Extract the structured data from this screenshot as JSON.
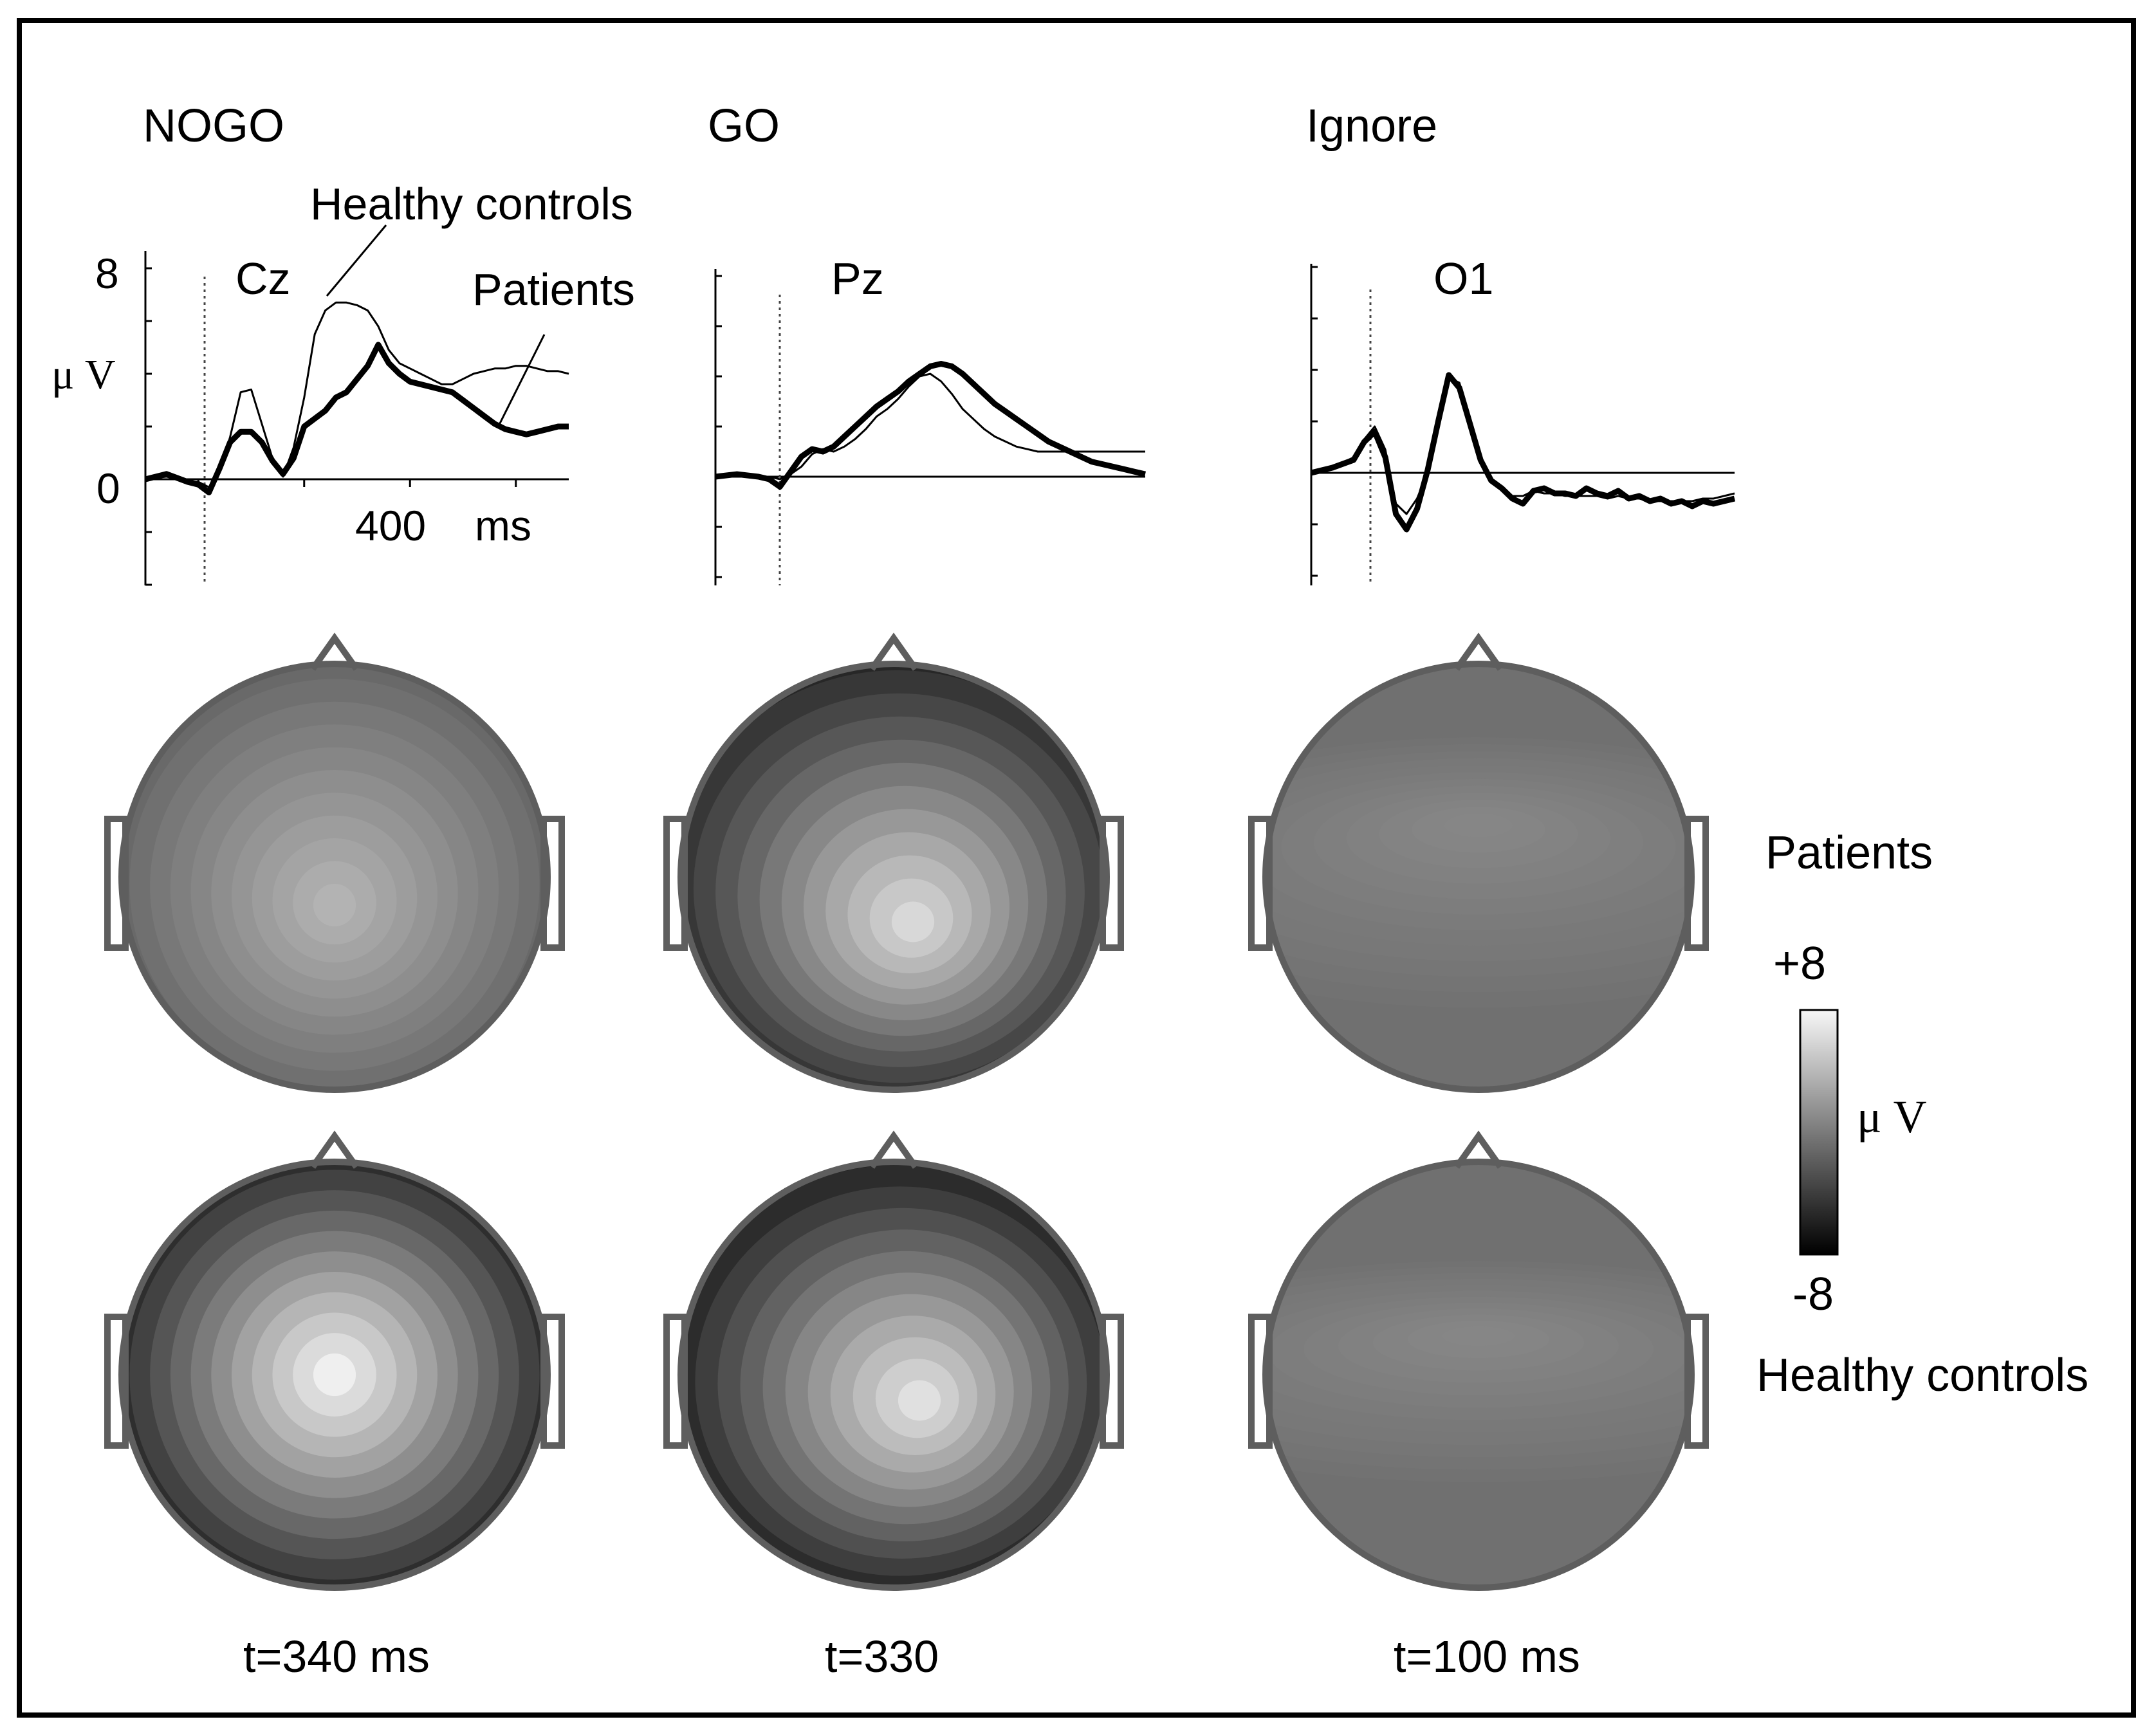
{
  "figure": {
    "conditions": [
      {
        "name": "NOGO",
        "electrode": "Cz",
        "time_label": "t=340 ms",
        "chart_data": {
          "type": "line",
          "electrode": "Cz",
          "xlabel": "ms",
          "ylabel": "µ V",
          "xlim": [
            -100,
            700
          ],
          "ylim": [
            -4,
            8
          ],
          "yticks": [
            0,
            8
          ],
          "xticks_labeled": [
            400
          ],
          "stimulus_onset_ms": 0,
          "annotations": [
            "Healthy controls",
            "Patients"
          ],
          "series": [
            {
              "name": "Healthy controls",
              "style": "thin",
              "x": [
                -100,
                -60,
                -20,
                0,
                20,
                40,
                60,
                80,
                100,
                120,
                140,
                160,
                180,
                200,
                220,
                240,
                260,
                280,
                300,
                320,
                340,
                360,
                380,
                400,
                420,
                440,
                460,
                480,
                500,
                520,
                540,
                560,
                580,
                600,
                620,
                640,
                660,
                680,
                700
              ],
              "y": [
                0,
                0.1,
                -0.1,
                -0.1,
                -0.3,
                0.3,
                1.6,
                3.3,
                3.4,
                2.1,
                0.8,
                0.1,
                1.2,
                3.1,
                5.5,
                6.4,
                6.7,
                6.7,
                6.6,
                6.4,
                5.8,
                4.9,
                4.4,
                4.2,
                4.0,
                3.8,
                3.6,
                3.6,
                3.8,
                4.0,
                4.1,
                4.2,
                4.2,
                4.3,
                4.3,
                4.2,
                4.1,
                4.1,
                4.0
              ]
            },
            {
              "name": "Patients",
              "style": "thick",
              "x": [
                -100,
                -60,
                -20,
                0,
                20,
                40,
                60,
                80,
                100,
                120,
                140,
                160,
                180,
                200,
                220,
                240,
                260,
                280,
                300,
                320,
                340,
                360,
                380,
                400,
                420,
                440,
                460,
                480,
                500,
                520,
                540,
                560,
                580,
                600,
                620,
                640,
                660,
                680,
                700
              ],
              "y": [
                0,
                0.2,
                -0.1,
                -0.2,
                -0.5,
                0.4,
                1.4,
                1.8,
                1.8,
                1.4,
                0.7,
                0.2,
                0.8,
                2.0,
                2.3,
                2.6,
                3.1,
                3.3,
                3.8,
                4.3,
                5.1,
                4.4,
                4.0,
                3.7,
                3.6,
                3.5,
                3.4,
                3.3,
                3.0,
                2.7,
                2.4,
                2.1,
                1.9,
                1.8,
                1.7,
                1.8,
                1.9,
                2.0,
                2.0
              ]
            }
          ]
        }
      },
      {
        "name": "GO",
        "electrode": "Pz",
        "time_label": "t=330",
        "chart_data": {
          "type": "line",
          "electrode": "Pz",
          "xlim": [
            -100,
            700
          ],
          "ylim": [
            -4,
            8
          ],
          "stimulus_onset_ms": 0,
          "series": [
            {
              "name": "Healthy controls",
              "style": "thin",
              "x": [
                -100,
                -60,
                -20,
                0,
                20,
                40,
                60,
                80,
                100,
                120,
                140,
                160,
                180,
                200,
                220,
                240,
                260,
                280,
                300,
                320,
                340,
                360,
                380,
                400,
                420,
                440,
                460,
                480,
                500,
                520,
                540,
                560,
                580,
                600,
                620,
                640,
                660,
                680,
                700
              ],
              "y": [
                0,
                0.1,
                0,
                0,
                -0.1,
                0.1,
                0.4,
                0.9,
                1.1,
                1.0,
                1.2,
                1.5,
                1.9,
                2.4,
                2.7,
                3.1,
                3.6,
                4.0,
                4.1,
                3.8,
                3.3,
                2.7,
                2.3,
                1.9,
                1.6,
                1.4,
                1.2,
                1.1,
                1.0,
                1.0,
                1.0,
                1.0,
                1.0,
                1.0,
                1.0,
                1.0,
                1.0,
                1.0,
                1.0
              ]
            },
            {
              "name": "Patients",
              "style": "thick",
              "x": [
                -100,
                -60,
                -20,
                0,
                20,
                40,
                60,
                80,
                100,
                120,
                140,
                160,
                180,
                200,
                220,
                240,
                260,
                280,
                300,
                320,
                340,
                360,
                380,
                400,
                420,
                440,
                460,
                480,
                500,
                520,
                540,
                560,
                580,
                600,
                620,
                640,
                660,
                680,
                700
              ],
              "y": [
                0,
                0.1,
                0,
                -0.1,
                -0.4,
                0.2,
                0.8,
                1.1,
                1.0,
                1.2,
                1.6,
                2.0,
                2.4,
                2.8,
                3.1,
                3.4,
                3.8,
                4.1,
                4.4,
                4.5,
                4.4,
                4.1,
                3.7,
                3.3,
                2.9,
                2.6,
                2.3,
                2.0,
                1.7,
                1.4,
                1.2,
                1.0,
                0.8,
                0.6,
                0.5,
                0.4,
                0.3,
                0.2,
                0.1
              ]
            }
          ]
        }
      },
      {
        "name": "Ignore",
        "electrode": "O1",
        "time_label": "t=100 ms",
        "chart_data": {
          "type": "line",
          "electrode": "O1",
          "xlim": [
            -100,
            700
          ],
          "ylim": [
            -4,
            8
          ],
          "stimulus_onset_ms": 0,
          "series": [
            {
              "name": "Healthy controls",
              "style": "thin",
              "x": [
                -100,
                -60,
                -20,
                0,
                20,
                40,
                60,
                80,
                100,
                120,
                140,
                160,
                180,
                200,
                220,
                240,
                260,
                280,
                300,
                320,
                340,
                360,
                380,
                400,
                420,
                440,
                460,
                480,
                500,
                520,
                540,
                560,
                580,
                600,
                620,
                640,
                660,
                680,
                700
              ],
              "y": [
                0,
                0.2,
                0.6,
                1.3,
                1.8,
                0.9,
                -1.2,
                -1.6,
                -1.0,
                0,
                1.8,
                3.7,
                3.5,
                2.1,
                0.6,
                -0.2,
                -0.7,
                -0.9,
                -0.9,
                -0.7,
                -0.8,
                -0.8,
                -0.9,
                -0.9,
                -0.9,
                -0.9,
                -1.0,
                -0.9,
                -1.0,
                -1.0,
                -1.1,
                -1.1,
                -1.1,
                -1.1,
                -1.1,
                -1.0,
                -1.0,
                -0.9,
                -0.8
              ]
            },
            {
              "name": "Patients",
              "style": "thick",
              "x": [
                -100,
                -60,
                -20,
                0,
                20,
                40,
                60,
                80,
                100,
                120,
                140,
                160,
                180,
                200,
                220,
                240,
                260,
                280,
                300,
                320,
                340,
                360,
                380,
                400,
                420,
                440,
                460,
                480,
                500,
                520,
                540,
                560,
                580,
                600,
                620,
                640,
                660,
                680,
                700
              ],
              "y": [
                0,
                0.2,
                0.5,
                1.2,
                1.6,
                0.6,
                -1.6,
                -2.2,
                -1.4,
                0.1,
                2.0,
                3.8,
                3.3,
                1.9,
                0.5,
                -0.3,
                -0.6,
                -1.0,
                -1.2,
                -0.7,
                -0.6,
                -0.8,
                -0.8,
                -0.9,
                -0.6,
                -0.8,
                -0.9,
                -0.7,
                -1.0,
                -0.9,
                -1.1,
                -1.0,
                -1.2,
                -1.1,
                -1.3,
                -1.1,
                -1.2,
                -1.1,
                -1.0
              ]
            }
          ]
        }
      }
    ],
    "axis_labels": {
      "y_top": "8",
      "y_zero": "0",
      "unit": "μ V",
      "x_tick": "400",
      "x_unit": "ms"
    },
    "annotations": {
      "healthy_controls": "Healthy controls",
      "patients": "Patients"
    },
    "row_labels": {
      "patients": "Patients",
      "healthy_controls": "Healthy controls"
    },
    "colorbar": {
      "max_label": "+8",
      "min_label": "-8",
      "unit": "μ V",
      "range": [
        -8,
        8
      ]
    },
    "topomaps": [
      {
        "condition": "NOGO",
        "group": "Patients",
        "time_ms": 340,
        "peak_value": 3.5,
        "rim_value": -2.5
      },
      {
        "condition": "GO",
        "group": "Patients",
        "time_ms": 330,
        "peak_value": 6.0,
        "rim_value": -7.0
      },
      {
        "condition": "Ignore",
        "group": "Patients",
        "time_ms": 100,
        "peak_value": 0.5,
        "rim_value": -1.0
      },
      {
        "condition": "NOGO",
        "group": "Healthy controls",
        "time_ms": 340,
        "peak_value": 7.5,
        "rim_value": -8.0
      },
      {
        "condition": "GO",
        "group": "Healthy controls",
        "time_ms": 330,
        "peak_value": 6.5,
        "rim_value": -8.0
      },
      {
        "condition": "Ignore",
        "group": "Healthy controls",
        "time_ms": 100,
        "peak_value": 0.5,
        "rim_value": -1.0
      }
    ],
    "colors": {
      "frame": "#000000",
      "head_outline": "#5e5e5e",
      "trace": "#000000"
    }
  }
}
